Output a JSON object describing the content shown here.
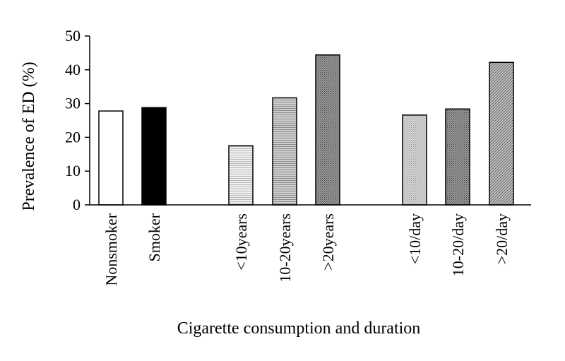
{
  "chart_data": {
    "type": "bar",
    "title": "",
    "xlabel": "Cigarette consumption and duration",
    "ylabel": "Prevalence of ED (%)",
    "ylim": [
      0,
      50
    ],
    "yticks": [
      0,
      10,
      20,
      30,
      40,
      50
    ],
    "grid": false,
    "legend": "none",
    "categories": [
      "Nonsmoker",
      "Smoker",
      "<10years",
      "10-20years",
      ">20years",
      "<10/day",
      "10-20/day",
      ">20/day"
    ],
    "values": [
      27.8,
      28.8,
      17.5,
      31.7,
      44.4,
      26.6,
      28.4,
      42.2
    ],
    "bar_styles": [
      {
        "fill": "#ffffff",
        "pattern": "none"
      },
      {
        "fill": "#000000",
        "pattern": "none"
      },
      {
        "fill": "#e4e4e4",
        "pattern": "fine-horizontal-lines"
      },
      {
        "fill": "#bdbdbd",
        "pattern": "horizontal-lines"
      },
      {
        "fill": "#7c7c7c",
        "pattern": "dense-dots"
      },
      {
        "fill": "#c8c8c8",
        "pattern": "light-dots"
      },
      {
        "fill": "#8f8f8f",
        "pattern": "dense-dots"
      },
      {
        "fill": "#a9a9a9",
        "pattern": "diagonal-hatch"
      }
    ]
  }
}
